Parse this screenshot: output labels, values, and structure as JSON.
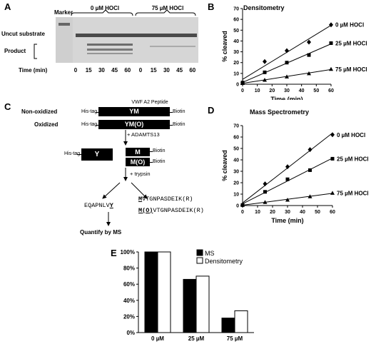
{
  "panelA": {
    "label": "A",
    "marker_label": "Marker",
    "groups": [
      {
        "label": "0 µM HOCl"
      },
      {
        "label": "75 µM HOCl"
      }
    ],
    "row_labels": {
      "uncut": "Uncut substrate",
      "product": "Product",
      "time": "Time (min)"
    },
    "times": [
      "0",
      "15",
      "30",
      "45",
      "60",
      "0",
      "15",
      "30",
      "45",
      "60"
    ]
  },
  "panelC": {
    "label": "C",
    "peptide_title": "VWF A2 Peptide",
    "non_oxidized_label": "Non-oxidized",
    "oxidized_label": "Oxidized",
    "his_tag": "His-tag",
    "biotin": "Biotin",
    "box_ym": "YM",
    "box_ymo": "YM(O)",
    "box_y": "Y",
    "box_m": "M",
    "box_mo": "M(O)",
    "step1": "+ ADAMTS13",
    "step2": "+ trypsin",
    "seq_left_prefix": "EQAPNLV",
    "seq_left_y": "Y",
    "seq_m": "M",
    "seq_mo": "M(O)",
    "seq_rest": "VTGNPASDEIK(R)",
    "quantify": "Quantify by MS"
  },
  "charts": {
    "B": {
      "label": "B",
      "chart_data": {
        "type": "scatter",
        "title": "Densitometry",
        "xlabel": "Time (min)",
        "ylabel": "% cleaved",
        "xlim": [
          0,
          60
        ],
        "ylim": [
          0,
          70
        ],
        "xticks": [
          0,
          10,
          20,
          30,
          40,
          50,
          60
        ],
        "yticks": [
          0,
          10,
          20,
          30,
          40,
          50,
          60,
          70
        ],
        "series": [
          {
            "name": "0 µM HOCl",
            "marker": "diamond",
            "x": [
              0,
              15,
              30,
              45,
              60
            ],
            "y": [
              1.5,
              21,
              31,
              39,
              55
            ]
          },
          {
            "name": "25 µM HOCl",
            "marker": "square",
            "x": [
              0,
              15,
              30,
              45,
              60
            ],
            "y": [
              1.5,
              11,
              20,
              27,
              38
            ]
          },
          {
            "name": "75 µM HOCl",
            "marker": "triangle",
            "x": [
              0,
              15,
              30,
              45,
              60
            ],
            "y": [
              1,
              4,
              7,
              10,
              14
            ]
          }
        ]
      }
    },
    "D": {
      "label": "D",
      "chart_data": {
        "type": "scatter",
        "title": "Mass Spectrometry",
        "xlabel": "Time (min)",
        "ylabel": "% cleaved",
        "xlim": [
          0,
          60
        ],
        "ylim": [
          0,
          70
        ],
        "xticks": [
          0,
          10,
          20,
          30,
          40,
          50,
          60
        ],
        "yticks": [
          0,
          10,
          20,
          30,
          40,
          50,
          60,
          70
        ],
        "series": [
          {
            "name": "0 µM HOCl",
            "marker": "diamond",
            "x": [
              0,
              15,
              30,
              45,
              60
            ],
            "y": [
              0.5,
              19,
              34,
              49,
              62
            ]
          },
          {
            "name": "25 µM HOCl",
            "marker": "square",
            "x": [
              0,
              15,
              30,
              45,
              60
            ],
            "y": [
              0.5,
              12,
              23,
              31,
              41
            ]
          },
          {
            "name": "75 µM HOCl",
            "marker": "triangle",
            "x": [
              0,
              15,
              30,
              45,
              60
            ],
            "y": [
              0.5,
              3,
              5,
              8,
              11
            ]
          }
        ]
      }
    },
    "E": {
      "label": "E",
      "chart_data": {
        "type": "bar",
        "categories": [
          "0 µM",
          "25 µM",
          "75 µM"
        ],
        "ylim": [
          0,
          100
        ],
        "yticks": [
          "0%",
          "20%",
          "40%",
          "60%",
          "80%",
          "100%"
        ],
        "series": [
          {
            "name": "MS",
            "color": "#000000",
            "values": [
              100,
              66,
              18
            ]
          },
          {
            "name": "Densitometry",
            "color": "#ffffff",
            "values": [
              100,
              70,
              27
            ]
          }
        ]
      }
    }
  }
}
